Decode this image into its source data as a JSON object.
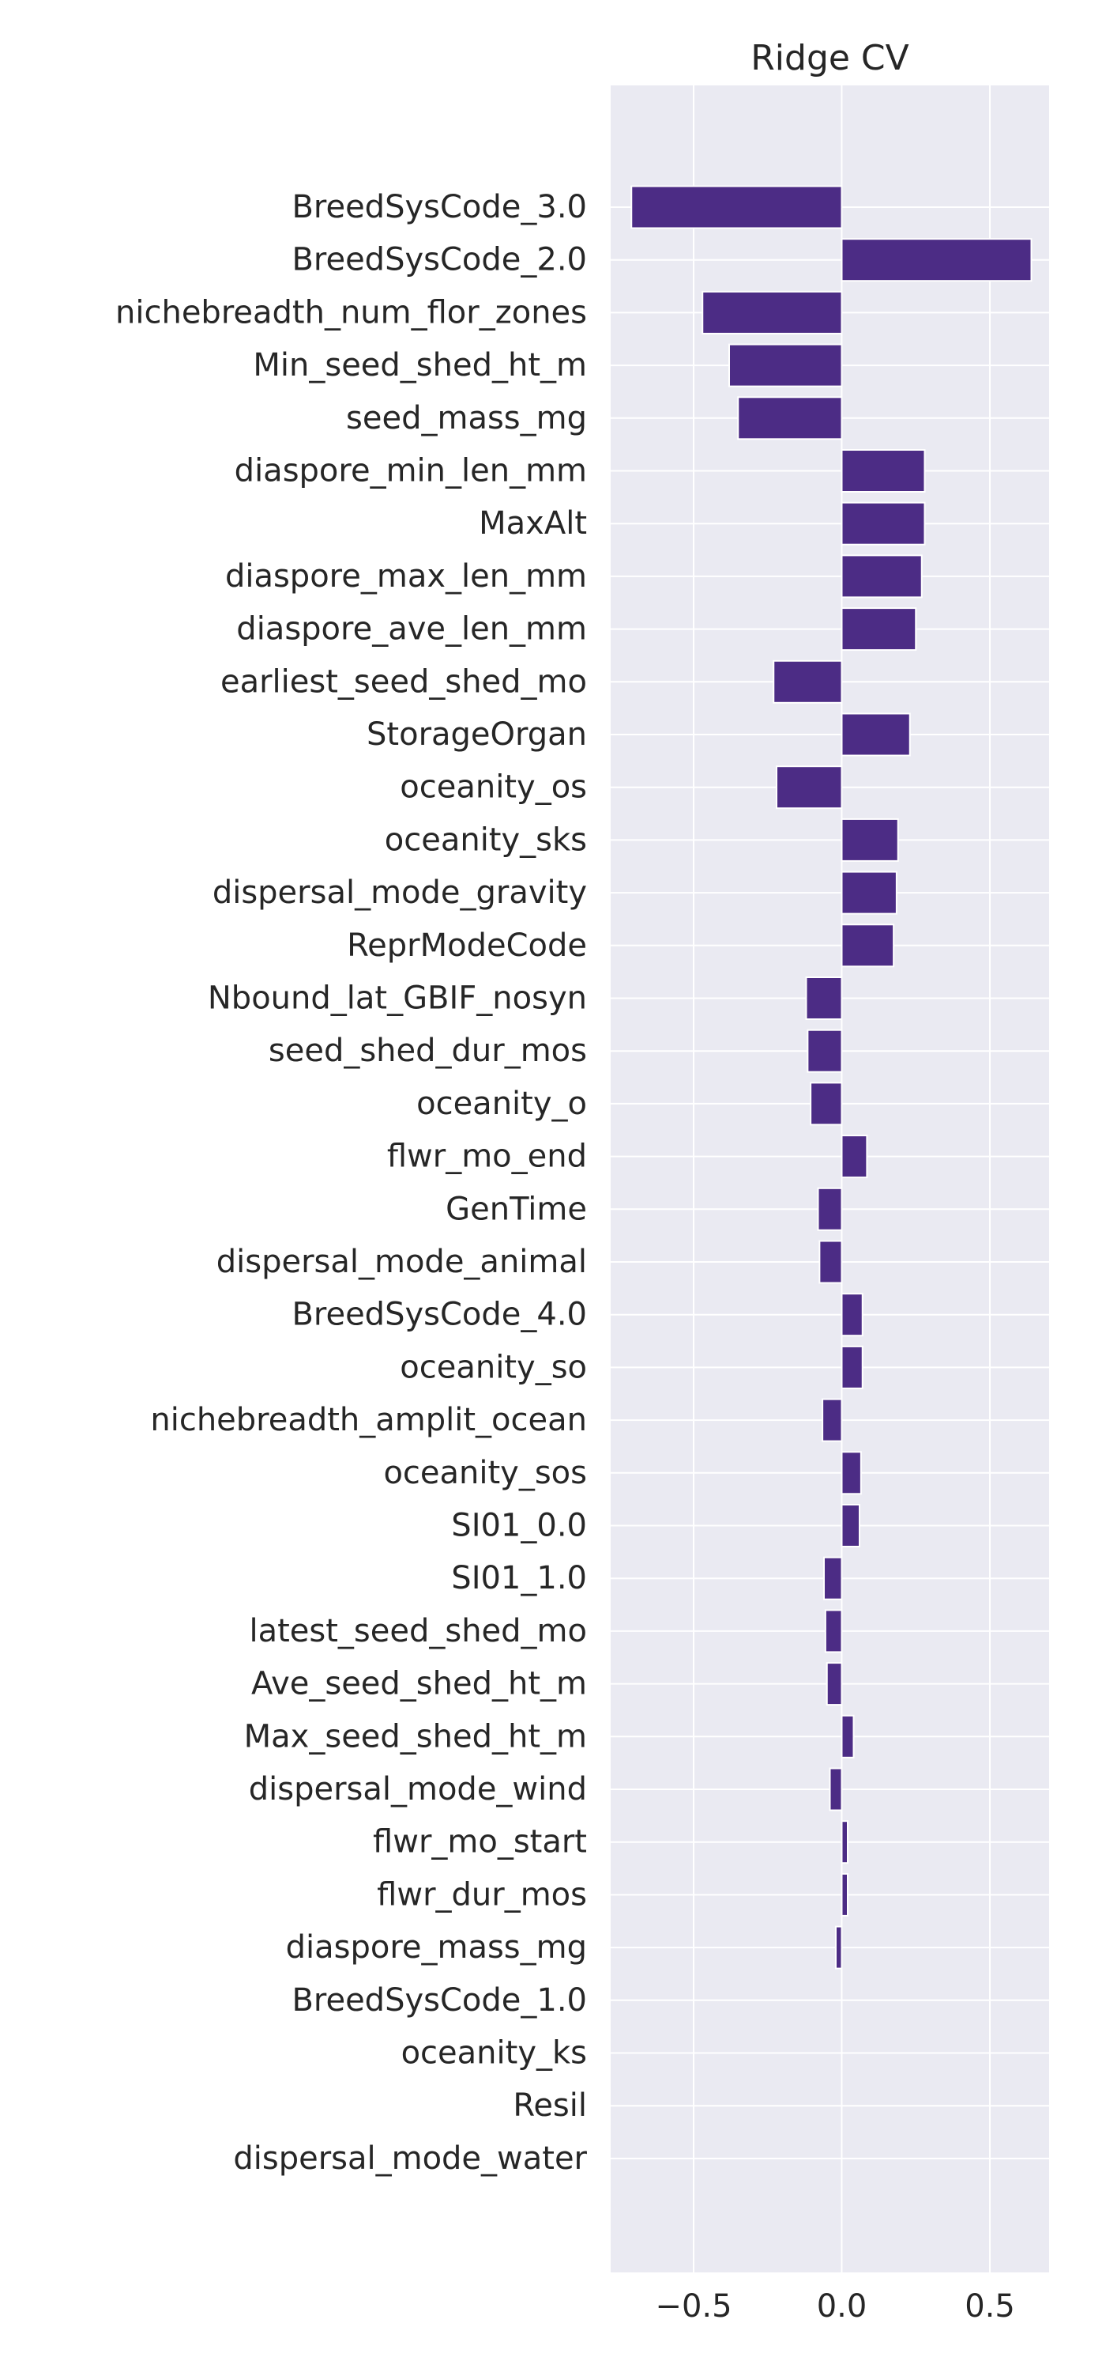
{
  "chart_data": {
    "type": "bar",
    "orientation": "horizontal",
    "title": "Ridge CV",
    "xlabel": "",
    "ylabel": "",
    "xlim": [
      -0.78,
      0.7
    ],
    "xticks": [
      -0.5,
      0.0,
      0.5
    ],
    "xtick_labels": [
      "−0.5",
      "0.0",
      "0.5"
    ],
    "grid": true,
    "bar_color": "#4c2c85",
    "background_color": "#eaeaf2",
    "categories": [
      "BreedSysCode_3.0",
      "BreedSysCode_2.0",
      "nichebreadth_num_flor_zones",
      "Min_seed_shed_ht_m",
      "seed_mass_mg",
      "diaspore_min_len_mm",
      "MaxAlt",
      "diaspore_max_len_mm",
      "diaspore_ave_len_mm",
      "earliest_seed_shed_mo",
      "StorageOrgan",
      "oceanity_os",
      "oceanity_sks",
      "dispersal_mode_gravity",
      "ReprModeCode",
      "Nbound_lat_GBIF_nosyn",
      "seed_shed_dur_mos",
      "oceanity_o",
      "flwr_mo_end",
      "GenTime",
      "dispersal_mode_animal",
      "BreedSysCode_4.0",
      "oceanity_so",
      "nichebreadth_amplit_ocean",
      "oceanity_sos",
      "SI01_0.0",
      "SI01_1.0",
      "latest_seed_shed_mo",
      "Ave_seed_shed_ht_m",
      "Max_seed_shed_ht_m",
      "dispersal_mode_wind",
      "flwr_mo_start",
      "flwr_dur_mos",
      "diaspore_mass_mg",
      "BreedSysCode_1.0",
      "oceanity_ks",
      "Resil",
      "dispersal_mode_water"
    ],
    "values": [
      -0.71,
      0.64,
      -0.47,
      -0.38,
      -0.35,
      0.28,
      0.28,
      0.27,
      0.25,
      -0.23,
      0.23,
      -0.22,
      0.19,
      0.185,
      0.175,
      -0.12,
      -0.115,
      -0.105,
      0.085,
      -0.08,
      -0.075,
      0.07,
      0.07,
      -0.065,
      0.065,
      0.06,
      -0.06,
      -0.055,
      -0.05,
      0.04,
      -0.04,
      0.02,
      0.02,
      -0.02,
      0.0,
      0.0,
      0.0,
      0.0
    ]
  }
}
